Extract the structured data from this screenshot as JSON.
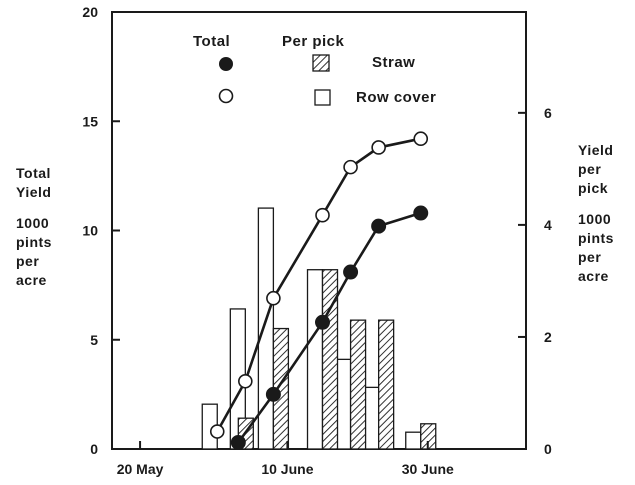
{
  "chart_data": {
    "type": "bar",
    "x_axis": {
      "tick_labels": [
        "20 May",
        "10 June",
        "30 June"
      ],
      "tick_values": [
        0,
        21,
        41
      ],
      "range": [
        -4,
        55
      ]
    },
    "left_axis": {
      "label_lines": [
        "Total",
        "Yield",
        "",
        "1000",
        "pints",
        "per",
        "acre"
      ],
      "range": [
        0,
        20
      ],
      "ticks": [
        0,
        5,
        10,
        15,
        20
      ]
    },
    "right_axis": {
      "label_lines": [
        "Yield",
        "per",
        "pick",
        "",
        "1000",
        "pints",
        "per",
        "acre"
      ],
      "range": [
        0,
        7.8
      ],
      "ticks": [
        0,
        2,
        4,
        6
      ]
    },
    "legend": {
      "header_total": "Total",
      "header_per_pick": "Per pick",
      "straw_label": "Straw",
      "row_cover_label": "Row cover",
      "placement": "top"
    },
    "series": [
      {
        "name": "Straw",
        "kind": "total-line",
        "marker": "filled-circle",
        "x": [
          14,
          19,
          26,
          30,
          34,
          40
        ],
        "y": [
          0.3,
          2.5,
          5.8,
          8.1,
          10.2,
          10.8
        ]
      },
      {
        "name": "Row cover",
        "kind": "total-line",
        "marker": "open-circle",
        "x": [
          11,
          15,
          19,
          26,
          30,
          34,
          40
        ],
        "y": [
          0.8,
          3.1,
          6.9,
          10.7,
          12.9,
          13.8,
          14.2
        ]
      },
      {
        "name": "Row cover",
        "kind": "per-pick-bars",
        "fill": "open",
        "x": [
          11,
          15,
          19,
          26,
          30,
          34,
          40
        ],
        "values": [
          0.8,
          2.5,
          4.3,
          3.2,
          1.6,
          1.1,
          0.3
        ]
      },
      {
        "name": "Straw",
        "kind": "per-pick-bars",
        "fill": "hatched",
        "x": [
          14,
          19,
          26,
          30,
          34,
          40
        ],
        "values": [
          0.55,
          2.15,
          3.2,
          2.3,
          2.3,
          0.45
        ]
      }
    ]
  }
}
